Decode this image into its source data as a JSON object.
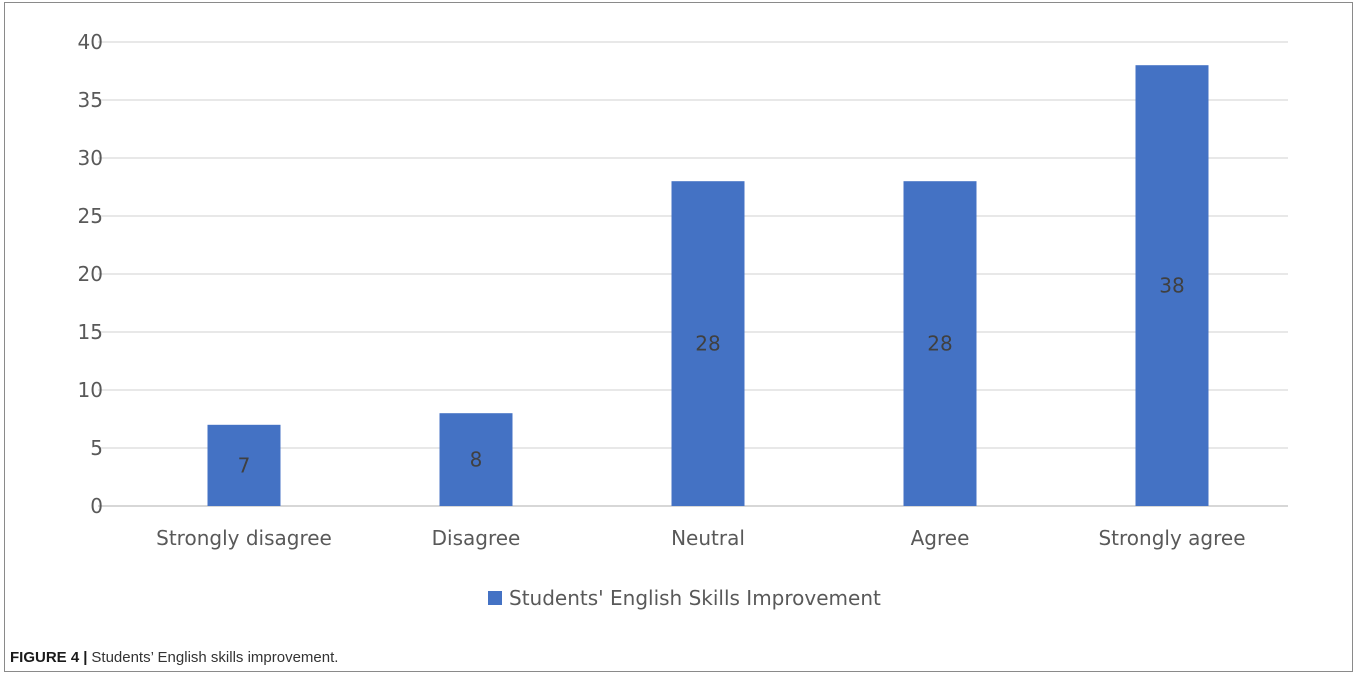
{
  "chart_data": {
    "type": "bar",
    "categories": [
      "Strongly disagree",
      "Disagree",
      "Neutral",
      "Agree",
      "Strongly agree"
    ],
    "series": [
      {
        "name": "Students' English Skills Improvement",
        "values": [
          7,
          8,
          28,
          28,
          38
        ],
        "color": "#4472C4"
      }
    ],
    "data_labels": [
      "7",
      "8",
      "28",
      "28",
      "38"
    ],
    "ylim": [
      0,
      40
    ],
    "yticks": [
      0,
      5,
      10,
      15,
      20,
      25,
      30,
      35,
      40
    ],
    "grid": true,
    "legend_position": "bottom"
  },
  "caption": {
    "label": "FIGURE 4",
    "separator": "|",
    "text": "Students’ English skills improvement."
  },
  "colors": {
    "bar": "#4472C4",
    "grid": "#d9d9d9",
    "axis_text": "#595959",
    "data_label": "#404040"
  }
}
